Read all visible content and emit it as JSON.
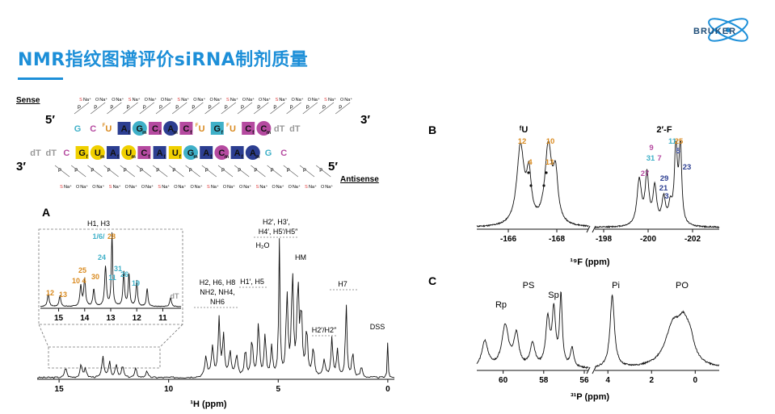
{
  "slide": {
    "title": "NMR指纹图谱评价siRNA制剂质量",
    "logo_text": "BRUKER"
  },
  "colors": {
    "accent": "#1d8fd8",
    "orange": "#d98a1f",
    "teal": "#3fb0c8",
    "navy": "#2c3e91",
    "magenta": "#b54aa0",
    "yellow": "#f0d000",
    "gray": "#999999"
  },
  "schematic": {
    "sense_label": "Sense",
    "antisense_label": "Antisense",
    "five_prime_top": "5′",
    "three_prime_top": "3′",
    "three_prime_bottom": "3′",
    "five_prime_bottom": "5′",
    "backbone_na": "Na⁺",
    "backbone_o": "O",
    "backbone_s": "S",
    "backbone_p": "P",
    "ho_label": "HO",
    "sense_strand": [
      {
        "t": "G",
        "s": "plain",
        "c": "teal"
      },
      {
        "t": "C",
        "s": "plain",
        "c": "magenta"
      },
      {
        "t": "U",
        "s": "fluoro",
        "c": "orange",
        "sup": "F"
      },
      {
        "t": "A",
        "s": "square",
        "c": "navy",
        "sub": "f"
      },
      {
        "t": "G",
        "s": "circle",
        "c": "teal",
        "sub": "m"
      },
      {
        "t": "C",
        "s": "square",
        "c": "magenta",
        "sub": "f"
      },
      {
        "t": "A",
        "s": "circle",
        "c": "navy",
        "sub": "m"
      },
      {
        "t": "C",
        "s": "square",
        "c": "magenta",
        "sub": "f"
      },
      {
        "t": "U",
        "s": "fluoro",
        "c": "orange",
        "sup": "F"
      },
      {
        "t": "G",
        "s": "square",
        "c": "teal",
        "sub": "f"
      },
      {
        "t": "U",
        "s": "fluoro",
        "c": "orange",
        "sup": "F"
      },
      {
        "t": "C",
        "s": "square",
        "c": "magenta",
        "sub": "f"
      },
      {
        "t": "C",
        "s": "circle",
        "c": "magenta",
        "sub": "m"
      },
      {
        "t": "dT",
        "s": "plain",
        "c": "gray"
      },
      {
        "t": "dT",
        "s": "plain",
        "c": "gray"
      }
    ],
    "antisense_strand": [
      {
        "t": "dT",
        "s": "plain",
        "c": "gray"
      },
      {
        "t": "dT",
        "s": "plain",
        "c": "gray"
      },
      {
        "t": "C",
        "s": "plain",
        "c": "magenta"
      },
      {
        "t": "G",
        "s": "square",
        "c": "yellow",
        "sub": "f"
      },
      {
        "t": "U",
        "s": "circle",
        "c": "yellow",
        "sub": "m"
      },
      {
        "t": "A",
        "s": "square",
        "c": "navy",
        "sub": "f"
      },
      {
        "t": "U",
        "s": "circle",
        "c": "yellow",
        "sub": "m"
      },
      {
        "t": "C",
        "s": "square",
        "c": "magenta",
        "sub": "f"
      },
      {
        "t": "A",
        "s": "square",
        "c": "navy",
        "sub": "f"
      },
      {
        "t": "U",
        "s": "square",
        "c": "yellow",
        "sub": "f"
      },
      {
        "t": "G",
        "s": "circle",
        "c": "teal",
        "sub": "m"
      },
      {
        "t": "A",
        "s": "square",
        "c": "navy",
        "sub": "f"
      },
      {
        "t": "C",
        "s": "circle",
        "c": "magenta",
        "sub": "m"
      },
      {
        "t": "A",
        "s": "square",
        "c": "navy",
        "sub": "f"
      },
      {
        "t": "A",
        "s": "circle",
        "c": "navy",
        "sub": "m"
      },
      {
        "t": "G",
        "s": "plain",
        "c": "teal"
      },
      {
        "t": "C",
        "s": "plain",
        "c": "magenta"
      }
    ]
  },
  "chart_data": [
    {
      "panel": "A",
      "type": "line",
      "xlabel": "¹H (ppm)",
      "x_reversed": true,
      "xlim": [
        16,
        -0.3
      ],
      "ticks": [
        15,
        10,
        5,
        0
      ],
      "peaks": [
        {
          "x": 14.7,
          "h": 0.08,
          "w": 0.05
        },
        {
          "x": 14.0,
          "h": 0.1,
          "w": 0.05
        },
        {
          "x": 13.8,
          "h": 0.07,
          "w": 0.05
        },
        {
          "x": 13.0,
          "h": 0.16,
          "w": 0.05
        },
        {
          "x": 12.7,
          "h": 0.12,
          "w": 0.05
        },
        {
          "x": 12.4,
          "h": 0.1,
          "w": 0.05
        },
        {
          "x": 12.1,
          "h": 0.09,
          "w": 0.05
        },
        {
          "x": 11.5,
          "h": 0.07,
          "w": 0.05
        },
        {
          "x": 11.0,
          "h": 0.05,
          "w": 0.05
        },
        {
          "x": 8.3,
          "h": 0.15,
          "w": 0.06
        },
        {
          "x": 8.0,
          "h": 0.22,
          "w": 0.06
        },
        {
          "x": 7.7,
          "h": 0.42,
          "w": 0.05
        },
        {
          "x": 7.5,
          "h": 0.3,
          "w": 0.05
        },
        {
          "x": 7.2,
          "h": 0.18,
          "w": 0.06
        },
        {
          "x": 6.9,
          "h": 0.16,
          "w": 0.06
        },
        {
          "x": 6.5,
          "h": 0.2,
          "w": 0.05
        },
        {
          "x": 6.2,
          "h": 0.28,
          "w": 0.05
        },
        {
          "x": 5.9,
          "h": 0.4,
          "w": 0.05
        },
        {
          "x": 5.6,
          "h": 0.3,
          "w": 0.05
        },
        {
          "x": 5.3,
          "h": 0.22,
          "w": 0.05
        },
        {
          "x": 4.95,
          "h": 1.0,
          "w": 0.035
        },
        {
          "x": 4.6,
          "h": 0.6,
          "w": 0.05
        },
        {
          "x": 4.35,
          "h": 0.75,
          "w": 0.05
        },
        {
          "x": 4.1,
          "h": 0.68,
          "w": 0.05
        },
        {
          "x": 3.95,
          "h": 0.48,
          "w": 0.05
        },
        {
          "x": 3.7,
          "h": 0.35,
          "w": 0.05
        },
        {
          "x": 3.4,
          "h": 0.2,
          "w": 0.06
        },
        {
          "x": 2.9,
          "h": 0.12,
          "w": 0.06
        },
        {
          "x": 2.55,
          "h": 0.28,
          "w": 0.05
        },
        {
          "x": 2.3,
          "h": 0.2,
          "w": 0.05
        },
        {
          "x": 1.9,
          "h": 0.55,
          "w": 0.04
        },
        {
          "x": 1.6,
          "h": 0.18,
          "w": 0.05
        },
        {
          "x": 1.2,
          "h": 0.08,
          "w": 0.05
        },
        {
          "x": 0.0,
          "h": 0.28,
          "w": 0.02
        }
      ],
      "annotations": [
        "H1, H3",
        "H2′, H3′,",
        "H4′, H5′/H5″",
        "H₂O",
        "HM",
        "H1′, H5",
        "H2, H6, H8",
        "NH2, NH4,",
        "NH6",
        "H7",
        "H2′/H2″",
        "DSS"
      ],
      "inset": {
        "ticks": [
          15,
          14,
          13,
          12,
          11
        ],
        "peaks": [
          {
            "x": 15.4,
            "h": 0.18,
            "w": 0.04
          },
          {
            "x": 14.95,
            "h": 0.15,
            "w": 0.04
          },
          {
            "x": 14.15,
            "h": 0.28,
            "w": 0.04
          },
          {
            "x": 14.0,
            "h": 0.38,
            "w": 0.04
          },
          {
            "x": 13.65,
            "h": 0.24,
            "w": 0.04
          },
          {
            "x": 13.2,
            "h": 0.55,
            "w": 0.04
          },
          {
            "x": 12.95,
            "h": 1.0,
            "w": 0.03
          },
          {
            "x": 12.5,
            "h": 0.48,
            "w": 0.035
          },
          {
            "x": 12.3,
            "h": 0.45,
            "w": 0.035
          },
          {
            "x": 12.0,
            "h": 0.36,
            "w": 0.035
          },
          {
            "x": 11.6,
            "h": 0.25,
            "w": 0.035
          },
          {
            "x": 10.7,
            "h": 0.12,
            "w": 0.04
          }
        ],
        "labels": [
          {
            "t": "12",
            "c": "orange",
            "x": 15.4
          },
          {
            "t": "13",
            "c": "orange",
            "x": 14.95
          },
          {
            "t": "10",
            "c": "orange",
            "x": 14.2
          },
          {
            "t": "4",
            "c": "orange",
            "x": 14.0
          },
          {
            "t": "25",
            "c": "orange",
            "x": 14.05
          },
          {
            "t": "30",
            "c": "orange",
            "x": 13.55
          },
          {
            "t": "24",
            "c": "teal",
            "x": 13.15
          },
          {
            "t": "1/6/",
            "c": "teal",
            "x": 13.05
          },
          {
            "t": "28",
            "c": "orange",
            "x": 12.75
          },
          {
            "t": "31",
            "c": "teal",
            "x": 12.4
          },
          {
            "t": "11",
            "c": "teal",
            "x": 12.6
          },
          {
            "t": "26",
            "c": "teal",
            "x": 12.05
          },
          {
            "t": "19",
            "c": "teal",
            "x": 11.55
          },
          {
            "t": "dT",
            "c": "gray",
            "x": 10.7
          }
        ]
      }
    },
    {
      "panel": "B",
      "type": "line",
      "xlabel": "¹⁹F (ppm)",
      "x_reversed": true,
      "segments": [
        {
          "label": "ᶠU",
          "xlim": [
            -164.7,
            -169.3
          ],
          "ticks": [
            -166,
            -168
          ],
          "peaks": [
            {
              "x": -166.5,
              "h": 0.95,
              "w": 0.18
            },
            {
              "x": -166.85,
              "h": 0.55,
              "w": 0.12
            },
            {
              "x": -167.65,
              "h": 0.95,
              "w": 0.17
            },
            {
              "x": -167.95,
              "h": 0.55,
              "w": 0.12
            }
          ],
          "labels": [
            {
              "t": "12",
              "c": "orange",
              "x": -166.45
            },
            {
              "t": "4",
              "c": "orange",
              "x": -166.85
            },
            {
              "t": "10",
              "c": "orange",
              "x": -167.6
            },
            {
              "t": "13",
              "c": "orange",
              "x": -168.0
            }
          ]
        },
        {
          "label": "2′-F",
          "xlim": [
            -197.6,
            -203.2
          ],
          "ticks": [
            -198,
            -200,
            -202
          ],
          "peaks": [
            {
              "x": -199.6,
              "h": 0.55,
              "w": 0.12
            },
            {
              "x": -199.95,
              "h": 0.6,
              "w": 0.1
            },
            {
              "x": -200.3,
              "h": 0.45,
              "w": 0.1
            },
            {
              "x": -200.7,
              "h": 0.32,
              "w": 0.1
            },
            {
              "x": -201.0,
              "h": 0.22,
              "w": 0.1
            },
            {
              "x": -201.25,
              "h": 0.95,
              "w": 0.08
            },
            {
              "x": -201.45,
              "h": 0.98,
              "w": 0.07
            }
          ],
          "labels": [
            {
              "t": "9",
              "c": "magenta",
              "x": -199.9
            },
            {
              "t": "31",
              "c": "teal",
              "x": -200.1
            },
            {
              "t": "7",
              "c": "magenta",
              "x": -200.35
            },
            {
              "t": "27",
              "c": "magenta",
              "x": -199.6
            },
            {
              "t": "29",
              "c": "navy",
              "x": -200.6
            },
            {
              "t": "21",
              "c": "navy",
              "x": -200.75
            },
            {
              "t": "3",
              "c": "navy",
              "x": -200.9
            },
            {
              "t": "11",
              "c": "teal",
              "x": -201.2
            },
            {
              "t": "25",
              "c": "orange",
              "x": -201.5
            },
            {
              "t": "5",
              "c": "navy",
              "x": -201.5
            },
            {
              "t": "23",
              "c": "navy",
              "x": -202.0
            }
          ]
        }
      ]
    },
    {
      "panel": "C",
      "type": "line",
      "xlabel": "³¹P (ppm)",
      "x_reversed": true,
      "segments": [
        {
          "xlim": [
            61.3,
            55.8
          ],
          "ticks": [
            60,
            58,
            56
          ],
          "peaks": [
            {
              "x": 60.9,
              "h": 0.35,
              "w": 0.18
            },
            {
              "x": 59.9,
              "h": 0.55,
              "w": 0.2
            },
            {
              "x": 59.35,
              "h": 0.42,
              "w": 0.15
            },
            {
              "x": 58.55,
              "h": 0.3,
              "w": 0.15
            },
            {
              "x": 57.8,
              "h": 0.62,
              "w": 0.12
            },
            {
              "x": 57.5,
              "h": 0.72,
              "w": 0.1
            },
            {
              "x": 57.15,
              "h": 0.92,
              "w": 0.08
            },
            {
              "x": 56.6,
              "h": 0.25,
              "w": 0.1
            }
          ],
          "labels": [
            "Rp",
            "PS",
            "Sp"
          ]
        },
        {
          "xlim": [
            4.6,
            -1.1
          ],
          "ticks": [
            4,
            2,
            0
          ],
          "peaks": [
            {
              "x": 3.8,
              "h": 0.95,
              "w": 0.12
            },
            {
              "x": 1.0,
              "h": 0.55,
              "w": 0.45
            },
            {
              "x": 0.55,
              "h": 0.35,
              "w": 0.25
            },
            {
              "x": 0.25,
              "h": 0.3,
              "w": 0.25
            }
          ],
          "labels": [
            "Pi",
            "PO"
          ]
        }
      ]
    }
  ]
}
